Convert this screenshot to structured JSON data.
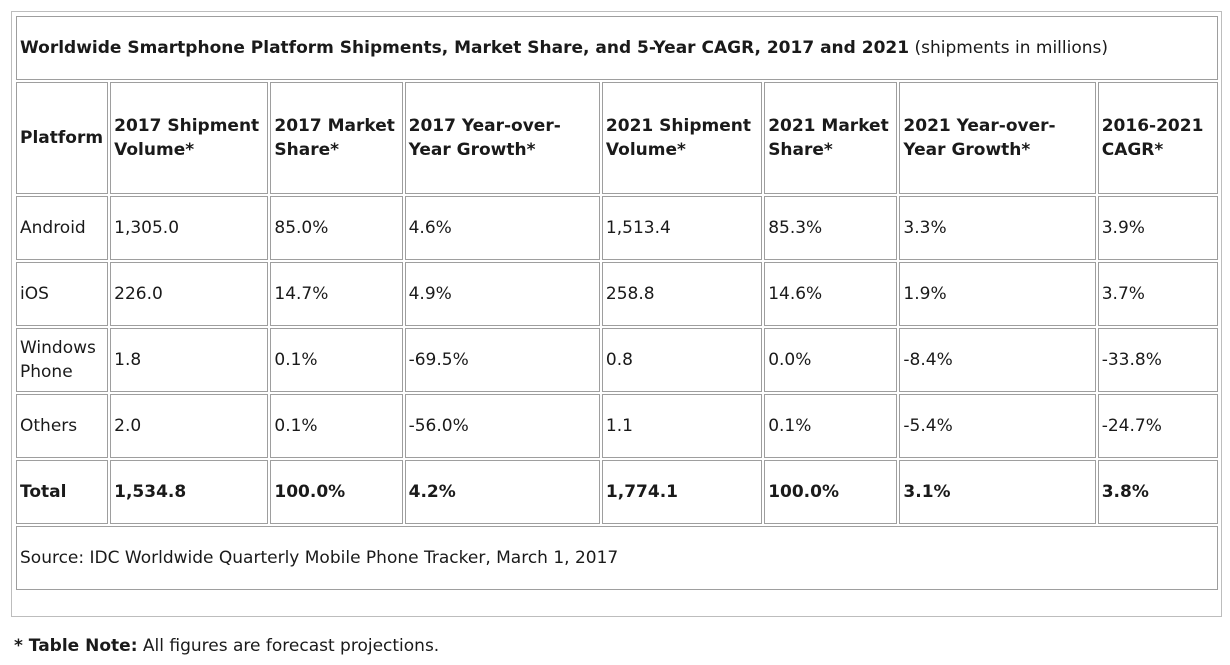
{
  "title": "Worldwide Smartphone Platform Shipments, Market Share, and 5-Year CAGR, 2017 and 2021",
  "title_suffix": "(shipments in millions)",
  "columns": [
    "Platform",
    "2017 Shipment Volume*",
    "2017 Market Share*",
    "2017 Year-over-Year Growth*",
    "2021 Shipment Volume*",
    "2021 Market Share*",
    "2021 Year-over-Year Growth*",
    "2016-2021 CAGR*"
  ],
  "rows": [
    [
      "Android",
      "1,305.0",
      "85.0%",
      "4.6%",
      "1,513.4",
      "85.3%",
      "3.3%",
      "3.9%"
    ],
    [
      "iOS",
      "226.0",
      "14.7%",
      "4.9%",
      "258.8",
      "14.6%",
      "1.9%",
      "3.7%"
    ],
    [
      "Windows Phone",
      "1.8",
      "0.1%",
      "-69.5%",
      "0.8",
      "0.0%",
      "-8.4%",
      "-33.8%"
    ],
    [
      "Others",
      "2.0",
      "0.1%",
      "-56.0%",
      "1.1",
      "0.1%",
      "-5.4%",
      "-24.7%"
    ],
    [
      "Total",
      "1,534.8",
      "100.0%",
      "4.2%",
      "1,774.1",
      "100.0%",
      "3.1%",
      "3.8%"
    ]
  ],
  "source": "Source: IDC Worldwide Quarterly Mobile Phone Tracker, March 1, 2017",
  "note_label": "* Table Note:",
  "note_text": "All figures are forecast projections.",
  "chart_data": {
    "type": "table",
    "title": "Worldwide Smartphone Platform Shipments, Market Share, and 5-Year CAGR, 2017 and 2021 (shipments in millions)",
    "columns": [
      "Platform",
      "2017 Shipment Volume*",
      "2017 Market Share*",
      "2017 Year-over-Year Growth*",
      "2021 Shipment Volume*",
      "2021 Market Share*",
      "2021 Year-over-Year Growth*",
      "2016-2021 CAGR*"
    ],
    "rows": [
      [
        "Android",
        1305.0,
        85.0,
        4.6,
        1513.4,
        85.3,
        3.3,
        3.9
      ],
      [
        "iOS",
        226.0,
        14.7,
        4.9,
        258.8,
        14.6,
        1.9,
        3.7
      ],
      [
        "Windows Phone",
        1.8,
        0.1,
        -69.5,
        0.8,
        0.0,
        -8.4,
        -33.8
      ],
      [
        "Others",
        2.0,
        0.1,
        -56.0,
        1.1,
        0.1,
        -5.4,
        -24.7
      ],
      [
        "Total",
        1534.8,
        100.0,
        4.2,
        1774.1,
        100.0,
        3.1,
        3.8
      ]
    ]
  }
}
